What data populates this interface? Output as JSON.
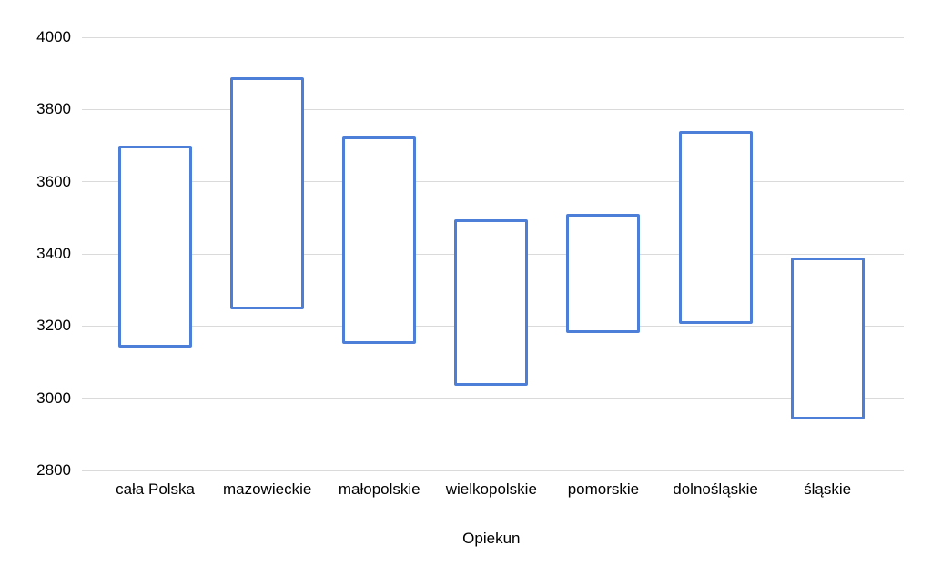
{
  "chart_data": {
    "type": "candlestick",
    "title": "",
    "xlabel": "Opiekun",
    "ylabel": "",
    "legend": "none",
    "grid": true,
    "y_axis": {
      "min": 2800,
      "max": 4000,
      "step": 200,
      "ticks": [
        4000,
        3800,
        3600,
        3400,
        3200,
        3000,
        2800
      ]
    },
    "categories": [
      "cała Polska",
      "mazowieckie",
      "małopolskie",
      "wielkopolskie",
      "pomorskie",
      "dolnośląskie",
      "śląskie"
    ],
    "series": [
      {
        "name": "range",
        "data": [
          {
            "category": "cała Polska",
            "low": 3140,
            "high": 3700
          },
          {
            "category": "mazowieckie",
            "low": 3245,
            "high": 3890
          },
          {
            "category": "małopolskie",
            "low": 3150,
            "high": 3725
          },
          {
            "category": "wielkopolskie",
            "low": 3035,
            "high": 3495
          },
          {
            "category": "pomorskie",
            "low": 3180,
            "high": 3510
          },
          {
            "category": "dolnośląskie",
            "low": 3205,
            "high": 3740
          },
          {
            "category": "śląskie",
            "low": 2940,
            "high": 3390
          }
        ]
      }
    ],
    "colors": {
      "bar_border": "#4d7fd8",
      "bar_fill": "#ffffff",
      "gridline": "#dadada",
      "text": "#000000",
      "background": "#ffffff"
    }
  }
}
